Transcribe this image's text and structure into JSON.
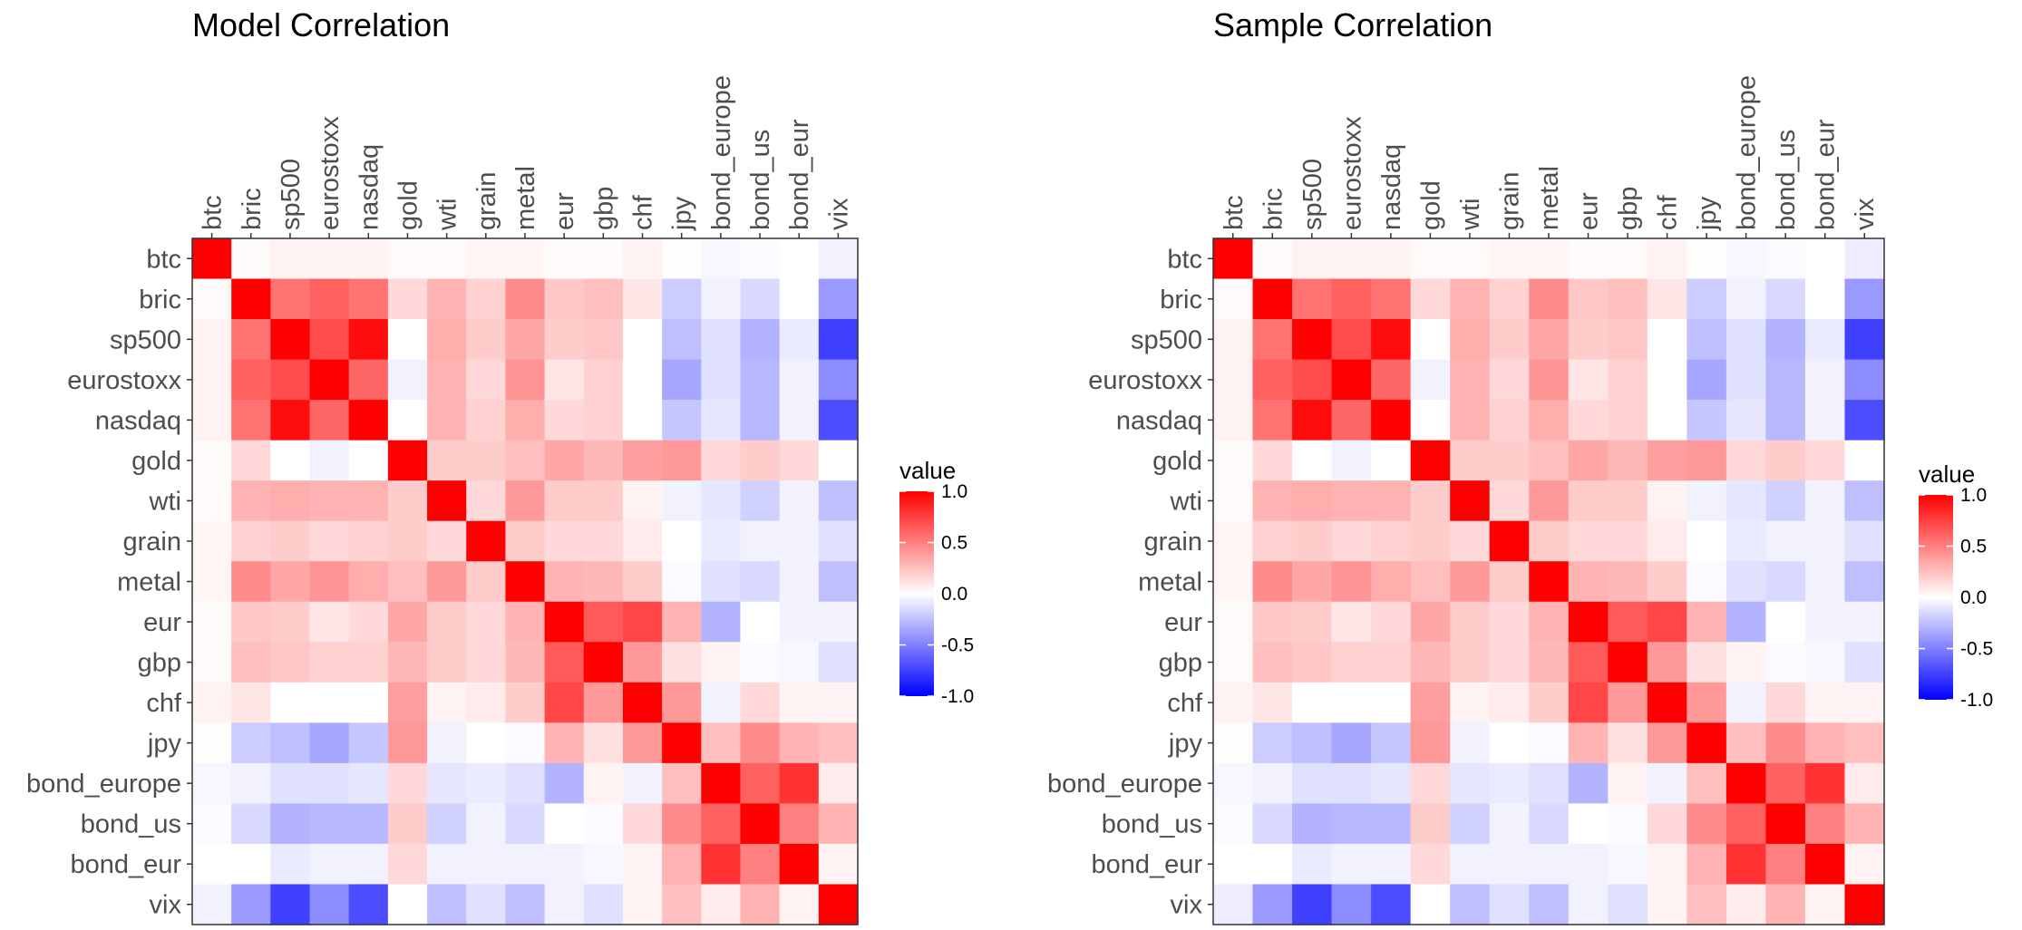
{
  "chart_data": [
    {
      "type": "heatmap",
      "title": "Model Correlation",
      "x_categories": [
        "btc",
        "bric",
        "sp500",
        "eurostoxx",
        "nasdaq",
        "gold",
        "wti",
        "grain",
        "metal",
        "eur",
        "gbp",
        "chf",
        "jpy",
        "bond_europe",
        "bond_us",
        "bond_eur",
        "vix"
      ],
      "y_categories": [
        "btc",
        "bric",
        "sp500",
        "eurostoxx",
        "nasdaq",
        "gold",
        "wti",
        "grain",
        "metal",
        "eur",
        "gbp",
        "chf",
        "jpy",
        "bond_europe",
        "bond_us",
        "bond_eur",
        "vix"
      ],
      "values": [
        [
          1.0,
          0.02,
          0.05,
          0.05,
          0.05,
          0.02,
          0.02,
          0.04,
          0.04,
          0.02,
          0.02,
          0.05,
          0.01,
          -0.03,
          -0.02,
          0.0,
          -0.05
        ],
        [
          0.02,
          1.0,
          0.55,
          0.62,
          0.55,
          0.15,
          0.3,
          0.18,
          0.45,
          0.22,
          0.25,
          0.1,
          -0.2,
          -0.05,
          -0.15,
          0.0,
          -0.4
        ],
        [
          0.05,
          0.55,
          1.0,
          0.7,
          0.95,
          0.0,
          0.32,
          0.2,
          0.35,
          0.2,
          0.22,
          0.0,
          -0.25,
          -0.12,
          -0.3,
          -0.08,
          -0.75
        ],
        [
          0.05,
          0.62,
          0.7,
          1.0,
          0.6,
          -0.05,
          0.3,
          0.15,
          0.42,
          0.1,
          0.18,
          0.0,
          -0.35,
          -0.12,
          -0.28,
          -0.05,
          -0.45
        ],
        [
          0.05,
          0.55,
          0.95,
          0.6,
          1.0,
          0.0,
          0.3,
          0.18,
          0.32,
          0.15,
          0.18,
          0.0,
          -0.22,
          -0.1,
          -0.28,
          -0.05,
          -0.7
        ],
        [
          0.02,
          0.15,
          0.0,
          -0.05,
          0.0,
          1.0,
          0.2,
          0.2,
          0.25,
          0.35,
          0.28,
          0.38,
          0.4,
          0.15,
          0.2,
          0.15,
          0.0
        ],
        [
          0.02,
          0.3,
          0.32,
          0.3,
          0.3,
          0.2,
          1.0,
          0.15,
          0.4,
          0.2,
          0.2,
          0.05,
          -0.05,
          -0.1,
          -0.18,
          -0.05,
          -0.25
        ],
        [
          0.04,
          0.18,
          0.2,
          0.15,
          0.18,
          0.2,
          0.15,
          1.0,
          0.2,
          0.15,
          0.15,
          0.08,
          0.0,
          -0.08,
          -0.05,
          -0.05,
          -0.12
        ],
        [
          0.04,
          0.45,
          0.35,
          0.42,
          0.32,
          0.25,
          0.4,
          0.2,
          1.0,
          0.3,
          0.28,
          0.2,
          -0.02,
          -0.12,
          -0.15,
          -0.05,
          -0.25
        ],
        [
          0.02,
          0.22,
          0.2,
          0.1,
          0.15,
          0.35,
          0.2,
          0.15,
          0.3,
          1.0,
          0.65,
          0.72,
          0.3,
          -0.3,
          0.0,
          -0.05,
          -0.05
        ],
        [
          0.02,
          0.25,
          0.22,
          0.18,
          0.18,
          0.28,
          0.2,
          0.15,
          0.28,
          0.65,
          1.0,
          0.4,
          0.12,
          0.05,
          -0.02,
          -0.03,
          -0.12
        ],
        [
          0.05,
          0.1,
          0.0,
          0.0,
          0.0,
          0.38,
          0.05,
          0.08,
          0.2,
          0.72,
          0.4,
          1.0,
          0.4,
          -0.05,
          0.15,
          0.05,
          0.05
        ],
        [
          0.01,
          -0.2,
          -0.25,
          -0.35,
          -0.22,
          0.4,
          -0.05,
          0.0,
          -0.02,
          0.3,
          0.12,
          0.4,
          1.0,
          0.25,
          0.45,
          0.3,
          0.25
        ],
        [
          -0.03,
          -0.05,
          -0.12,
          -0.12,
          -0.1,
          0.15,
          -0.1,
          -0.08,
          -0.12,
          -0.3,
          0.05,
          -0.05,
          0.25,
          1.0,
          0.62,
          0.8,
          0.08
        ],
        [
          -0.02,
          -0.15,
          -0.3,
          -0.28,
          -0.28,
          0.2,
          -0.18,
          -0.05,
          -0.15,
          0.0,
          -0.02,
          0.15,
          0.45,
          0.62,
          1.0,
          0.5,
          0.3
        ],
        [
          0.0,
          0.0,
          -0.08,
          -0.05,
          -0.05,
          0.15,
          -0.05,
          -0.05,
          -0.05,
          -0.05,
          -0.03,
          0.05,
          0.3,
          0.8,
          0.5,
          1.0,
          0.05
        ],
        [
          -0.05,
          -0.4,
          -0.75,
          -0.45,
          -0.7,
          0.0,
          -0.25,
          -0.12,
          -0.25,
          -0.05,
          -0.12,
          0.05,
          0.25,
          0.08,
          0.3,
          0.05,
          1.0
        ]
      ],
      "legend": {
        "title": "value",
        "ticks": [
          "1.0",
          "0.5",
          "0.0",
          "-0.5",
          "-1.0"
        ],
        "range": [
          -1,
          1
        ]
      }
    },
    {
      "type": "heatmap",
      "title": "Sample Correlation",
      "x_categories": [
        "btc",
        "bric",
        "sp500",
        "eurostoxx",
        "nasdaq",
        "gold",
        "wti",
        "grain",
        "metal",
        "eur",
        "gbp",
        "chf",
        "jpy",
        "bond_europe",
        "bond_us",
        "bond_eur",
        "vix"
      ],
      "y_categories": [
        "btc",
        "bric",
        "sp500",
        "eurostoxx",
        "nasdaq",
        "gold",
        "wti",
        "grain",
        "metal",
        "eur",
        "gbp",
        "chf",
        "jpy",
        "bond_europe",
        "bond_us",
        "bond_eur",
        "vix"
      ],
      "values": [
        [
          1.0,
          0.02,
          0.05,
          0.05,
          0.05,
          0.02,
          0.02,
          0.04,
          0.04,
          0.02,
          0.02,
          0.05,
          0.01,
          -0.03,
          -0.02,
          0.0,
          -0.07
        ],
        [
          0.02,
          1.0,
          0.55,
          0.62,
          0.55,
          0.15,
          0.3,
          0.18,
          0.45,
          0.22,
          0.25,
          0.1,
          -0.2,
          -0.05,
          -0.15,
          0.0,
          -0.4
        ],
        [
          0.05,
          0.55,
          1.0,
          0.7,
          0.95,
          0.0,
          0.32,
          0.2,
          0.35,
          0.2,
          0.22,
          0.0,
          -0.25,
          -0.12,
          -0.3,
          -0.08,
          -0.75
        ],
        [
          0.05,
          0.62,
          0.7,
          1.0,
          0.6,
          -0.05,
          0.3,
          0.15,
          0.42,
          0.1,
          0.18,
          0.0,
          -0.35,
          -0.12,
          -0.28,
          -0.05,
          -0.45
        ],
        [
          0.05,
          0.55,
          0.95,
          0.6,
          1.0,
          0.0,
          0.3,
          0.18,
          0.32,
          0.15,
          0.18,
          0.0,
          -0.22,
          -0.1,
          -0.28,
          -0.05,
          -0.7
        ],
        [
          0.02,
          0.15,
          0.0,
          -0.05,
          0.0,
          1.0,
          0.2,
          0.2,
          0.25,
          0.35,
          0.28,
          0.38,
          0.4,
          0.15,
          0.2,
          0.15,
          0.0
        ],
        [
          0.02,
          0.3,
          0.32,
          0.3,
          0.3,
          0.2,
          1.0,
          0.15,
          0.4,
          0.2,
          0.2,
          0.05,
          -0.05,
          -0.1,
          -0.18,
          -0.05,
          -0.25
        ],
        [
          0.04,
          0.18,
          0.2,
          0.15,
          0.18,
          0.2,
          0.15,
          1.0,
          0.2,
          0.15,
          0.15,
          0.08,
          0.0,
          -0.08,
          -0.05,
          -0.05,
          -0.12
        ],
        [
          0.04,
          0.45,
          0.35,
          0.42,
          0.32,
          0.25,
          0.4,
          0.2,
          1.0,
          0.3,
          0.28,
          0.2,
          -0.02,
          -0.12,
          -0.15,
          -0.05,
          -0.25
        ],
        [
          0.02,
          0.22,
          0.2,
          0.1,
          0.15,
          0.35,
          0.2,
          0.15,
          0.3,
          1.0,
          0.65,
          0.72,
          0.3,
          -0.3,
          0.0,
          -0.05,
          -0.05
        ],
        [
          0.02,
          0.25,
          0.22,
          0.18,
          0.18,
          0.28,
          0.2,
          0.15,
          0.28,
          0.65,
          1.0,
          0.4,
          0.12,
          0.05,
          -0.02,
          -0.03,
          -0.12
        ],
        [
          0.05,
          0.1,
          0.0,
          0.0,
          0.0,
          0.38,
          0.05,
          0.08,
          0.2,
          0.72,
          0.4,
          1.0,
          0.4,
          -0.05,
          0.15,
          0.05,
          0.05
        ],
        [
          0.01,
          -0.2,
          -0.25,
          -0.35,
          -0.22,
          0.4,
          -0.05,
          0.0,
          -0.02,
          0.3,
          0.12,
          0.4,
          1.0,
          0.25,
          0.45,
          0.3,
          0.25
        ],
        [
          -0.03,
          -0.05,
          -0.12,
          -0.12,
          -0.1,
          0.15,
          -0.1,
          -0.08,
          -0.12,
          -0.3,
          0.05,
          -0.05,
          0.25,
          1.0,
          0.62,
          0.8,
          0.08
        ],
        [
          -0.02,
          -0.15,
          -0.3,
          -0.28,
          -0.28,
          0.2,
          -0.18,
          -0.05,
          -0.15,
          0.0,
          -0.02,
          0.15,
          0.45,
          0.62,
          1.0,
          0.5,
          0.3
        ],
        [
          0.0,
          0.0,
          -0.08,
          -0.05,
          -0.05,
          0.15,
          -0.05,
          -0.05,
          -0.05,
          -0.05,
          -0.03,
          0.05,
          0.3,
          0.8,
          0.5,
          1.0,
          0.05
        ],
        [
          -0.07,
          -0.4,
          -0.75,
          -0.45,
          -0.7,
          0.0,
          -0.25,
          -0.12,
          -0.25,
          -0.05,
          -0.12,
          0.05,
          0.25,
          0.08,
          0.3,
          0.05,
          1.0
        ]
      ],
      "legend": {
        "title": "value",
        "ticks": [
          "1.0",
          "0.5",
          "0.0",
          "-0.5",
          "-1.0"
        ],
        "range": [
          -1,
          1
        ]
      }
    }
  ],
  "colors": {
    "high": "#ff0000",
    "mid": "#ffffff",
    "low": "#0000ff",
    "panel_border": "#333333",
    "tick_text": "#4d4d4d"
  }
}
